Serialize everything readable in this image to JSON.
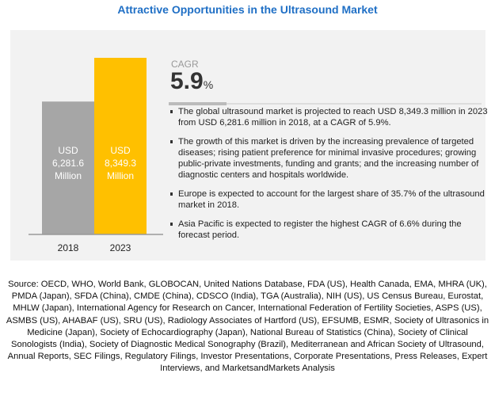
{
  "title": "Attractive Opportunities in the Ultrasound Market",
  "chart_data": {
    "type": "bar",
    "categories": [
      "2018",
      "2023"
    ],
    "values": [
      6281.6,
      8349.3
    ],
    "unit": "USD Million",
    "data_labels": [
      [
        "USD",
        "6,281.6",
        "Million"
      ],
      [
        "USD",
        "8,349.3",
        "Million"
      ]
    ],
    "colors": [
      "#a6a6a6",
      "#ffc000"
    ],
    "grid": false,
    "ylim": [
      0,
      8349.3
    ]
  },
  "cagr": {
    "label": "CAGR",
    "value": "5.9",
    "unit": "%"
  },
  "bullets": [
    "The global ultrasound market is projected to reach USD 8,349.3 million in 2023 from USD 6,281.6 million in 2018, at a CAGR of 5.9%.",
    "The growth of this market is driven by the increasing prevalence of targeted diseases; rising patient preference for minimal invasive procedures; growing public-private investments, funding and grants; and the increasing number of diagnostic centers and hospitals worldwide.",
    "Europe is expected to account for the largest share of 35.7% of the ultrasound market in 2018.",
    "Asia Pacific is expected to register the highest CAGR of 6.6% during the forecast period."
  ],
  "source": "Source: OECD, WHO, World Bank, GLOBOCAN, United Nations Database, FDA (US), Health Canada, EMA, MHRA (UK), PMDA (Japan), SFDA (China), CMDE (China), CDSCO (India), TGA (Australia), NIH (US), US Census Bureau, Eurostat, MHLW (Japan), International Agency for Research on Cancer, International Federation of Fertility Societies, ASPS (US), ASMBS (US), AHABAF (US), SRU (US), Radiology Associates of Hartford (US), EFSUMB, ESMR, Society of Ultrasonics in Medicine (Japan), Society of Echocardiography (Japan), National Bureau of Statistics (China), Society of Clinical Sonologists (India), Society of Diagnostic Medical Sonography (Brazil), Mediterranean and African Society of Ultrasound, Annual Reports, SEC Filings, Regulatory Filings, Investor Presentations, Corporate Presentations, Press Releases, Expert Interviews, and MarketsandMarkets Analysis"
}
